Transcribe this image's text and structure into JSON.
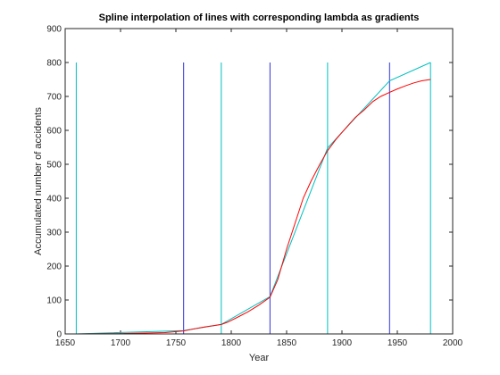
{
  "chart_data": {
    "type": "line",
    "title": "Spline interpolation of lines with corresponding lambda as gradients",
    "xlabel": "Year",
    "ylabel": "Accumulated number of accidents",
    "xlim": [
      1650,
      2000
    ],
    "ylim": [
      0,
      900
    ],
    "xticks": [
      1650,
      1700,
      1750,
      1800,
      1850,
      1900,
      1950,
      2000
    ],
    "yticks": [
      0,
      100,
      200,
      300,
      400,
      500,
      600,
      700,
      800,
      900
    ],
    "grid": false,
    "legend": "none",
    "colors": {
      "axes": "#262626",
      "cyan": "#00bfbf",
      "blue": "#3333dd",
      "red": "#ff0000"
    },
    "vertical_lines": [
      {
        "x": 1660,
        "y_top": 800,
        "color_key": "cyan"
      },
      {
        "x": 1757,
        "y_top": 800,
        "color_key": "blue"
      },
      {
        "x": 1791,
        "y_top": 800,
        "color_key": "cyan"
      },
      {
        "x": 1835,
        "y_top": 800,
        "color_key": "blue"
      },
      {
        "x": 1887,
        "y_top": 800,
        "color_key": "cyan"
      },
      {
        "x": 1943,
        "y_top": 800,
        "color_key": "blue"
      },
      {
        "x": 1980,
        "y_top": 800,
        "color_key": "cyan"
      }
    ],
    "series": [
      {
        "color_key": "cyan",
        "x": [
          1660,
          1757,
          1791,
          1835,
          1887,
          1943,
          1980
        ],
        "y": [
          0,
          10,
          28,
          110,
          548,
          746,
          800
        ]
      },
      {
        "color_key": "red",
        "x": [
          1660,
          1700,
          1740,
          1757,
          1765,
          1775,
          1785,
          1791,
          1797,
          1805,
          1815,
          1825,
          1835,
          1842,
          1850,
          1857,
          1865,
          1872,
          1880,
          1887,
          1895,
          1903,
          1912,
          1920,
          1928,
          1935,
          1943,
          1950,
          1958,
          1965,
          1972,
          1980
        ],
        "y": [
          0,
          1,
          4,
          9,
          14,
          20,
          25,
          28,
          35,
          48,
          65,
          85,
          108,
          160,
          250,
          320,
          400,
          450,
          500,
          540,
          575,
          605,
          638,
          660,
          685,
          700,
          712,
          722,
          732,
          740,
          746,
          750
        ]
      }
    ]
  }
}
